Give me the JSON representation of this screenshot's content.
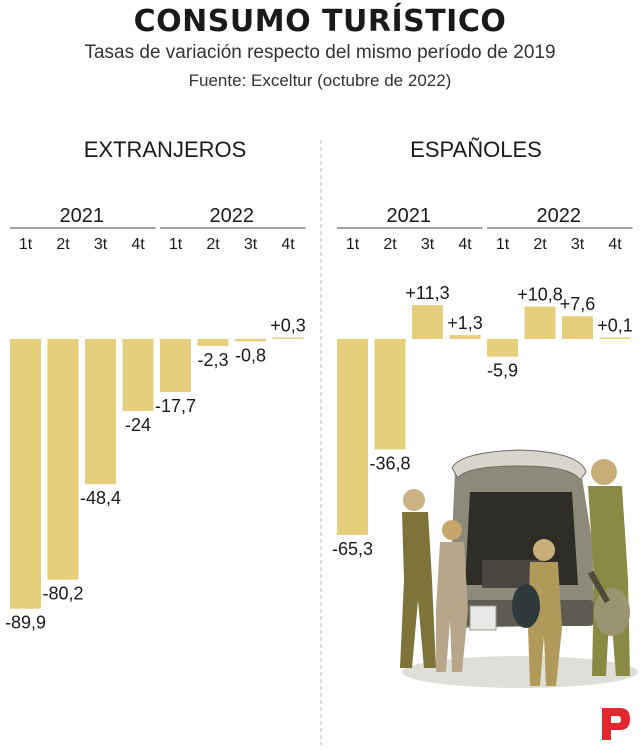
{
  "title": "CONSUMO TURÍSTICO",
  "subtitle": "Tasas de variación respecto del mismo período de 2019",
  "source": "Fuente: Exceltur (octubre de 2022)",
  "colors": {
    "bar": "#e6cf7c",
    "bar_stroke": "#d9bf63",
    "divider": "#bdbdbd",
    "logo": "#e3262f"
  },
  "chart_data": [
    {
      "type": "bar",
      "title": "EXTRANJEROS",
      "groups": [
        {
          "label": "2021",
          "categories": [
            "1t",
            "2t",
            "3t",
            "4t"
          ]
        },
        {
          "label": "2022",
          "categories": [
            "1t",
            "2t",
            "3t",
            "4t"
          ]
        }
      ],
      "categories": [
        "1t",
        "2t",
        "3t",
        "4t",
        "1t",
        "2t",
        "3t",
        "4t"
      ],
      "values": [
        -89.9,
        -80.2,
        -48.4,
        -24,
        -17.7,
        -2.3,
        -0.8,
        0.3
      ],
      "labels": [
        "-89,9",
        "-80,2",
        "-48,4",
        "-24",
        "-17,7",
        "-2,3",
        "-0,8",
        "+0,3"
      ]
    },
    {
      "type": "bar",
      "title": "ESPAÑOLES",
      "groups": [
        {
          "label": "2021",
          "categories": [
            "1t",
            "2t",
            "3t",
            "4t"
          ]
        },
        {
          "label": "2022",
          "categories": [
            "1t",
            "2t",
            "3t",
            "4t"
          ]
        }
      ],
      "categories": [
        "1t",
        "2t",
        "3t",
        "4t",
        "1t",
        "2t",
        "3t",
        "4t"
      ],
      "values": [
        -65.3,
        -36.8,
        11.3,
        1.3,
        -5.9,
        10.8,
        7.6,
        0.1
      ],
      "labels": [
        "-65,3",
        "-36,8",
        "+11,3",
        "+1,3",
        "-5,9",
        "+10,8",
        "+7,6",
        "+0,1"
      ]
    }
  ]
}
